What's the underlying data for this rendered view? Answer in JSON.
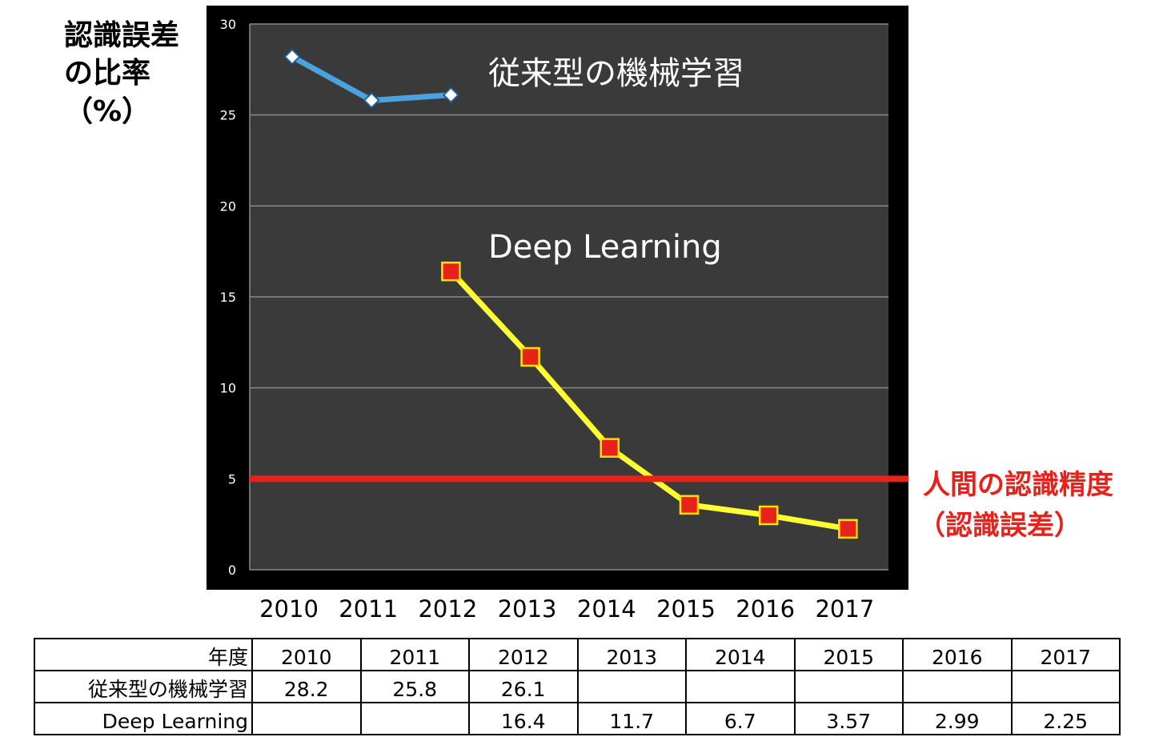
{
  "chart_data": {
    "type": "line",
    "ylabel_lines": [
      "認識誤差",
      "の比率",
      "（%）"
    ],
    "ylim": [
      0,
      30
    ],
    "yticks": [
      0,
      5,
      10,
      15,
      20,
      25,
      30
    ],
    "categories": [
      "2010",
      "2011",
      "2012",
      "2013",
      "2014",
      "2015",
      "2016",
      "2017"
    ],
    "background": "#3a3a3a",
    "grid": true,
    "series": [
      {
        "name": "従来型の機械学習",
        "color": "#4aa3df",
        "marker": "diamond",
        "values": [
          28.2,
          25.8,
          26.1,
          null,
          null,
          null,
          null,
          null
        ]
      },
      {
        "name": "Deep Learning",
        "color": "#ffff33",
        "marker": "square",
        "values": [
          null,
          null,
          16.4,
          11.7,
          6.7,
          3.57,
          2.99,
          2.25
        ]
      }
    ],
    "reference_line": {
      "value": 5,
      "color": "#e8211b",
      "label_lines": [
        "人間の認識精度",
        "（認識誤差）"
      ]
    }
  },
  "table": {
    "header_label": "年度",
    "rows": [
      {
        "label": "従来型の機械学習",
        "cells": [
          "28.2",
          "25.8",
          "26.1",
          "",
          "",
          "",
          "",
          ""
        ]
      },
      {
        "label": "Deep Learning",
        "cells": [
          "",
          "",
          "16.4",
          "11.7",
          "6.7",
          "3.57",
          "2.99",
          "2.25"
        ]
      }
    ]
  }
}
